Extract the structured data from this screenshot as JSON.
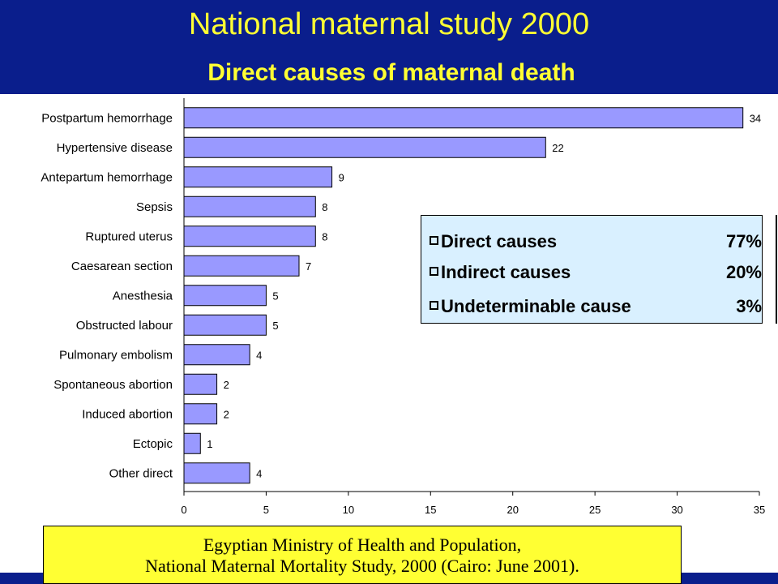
{
  "header": {
    "title": "National maternal study 2000",
    "subtitle": "Direct causes of maternal death"
  },
  "colors": {
    "header_bg": "#0a1e8c",
    "title_text": "#ffff33",
    "bar_fill": "#9999ff",
    "summary_bg": "#d9f0ff",
    "source_bg": "#ffff33"
  },
  "chart_data": {
    "type": "bar",
    "orientation": "horizontal",
    "categories": [
      "Postpartum hemorrhage",
      "Hypertensive disease",
      "Antepartum hemorrhage",
      "Sepsis",
      "Ruptured uterus",
      "Caesarean section",
      "Anesthesia",
      "Obstructed labour",
      "Pulmonary embolism",
      "Spontaneous abortion",
      "Induced abortion",
      "Ectopic",
      "Other direct"
    ],
    "values": [
      34,
      22,
      9,
      8,
      8,
      7,
      5,
      5,
      4,
      2,
      2,
      1,
      4
    ],
    "xlim": [
      0,
      35
    ],
    "xticks": [
      "0",
      "5",
      "10",
      "15",
      "20",
      "25",
      "30",
      "35"
    ],
    "grid": false
  },
  "summary": {
    "items": [
      {
        "label": "Direct causes",
        "percent": "77%"
      },
      {
        "label": "Indirect causes",
        "percent": "20%"
      },
      {
        "label": "Undeterminable cause",
        "percent": "3%"
      }
    ]
  },
  "source": {
    "line1": "Egyptian Ministry of Health and Population,",
    "line2": "National Maternal Mortality Study, 2000 (Cairo: June 2001)."
  }
}
